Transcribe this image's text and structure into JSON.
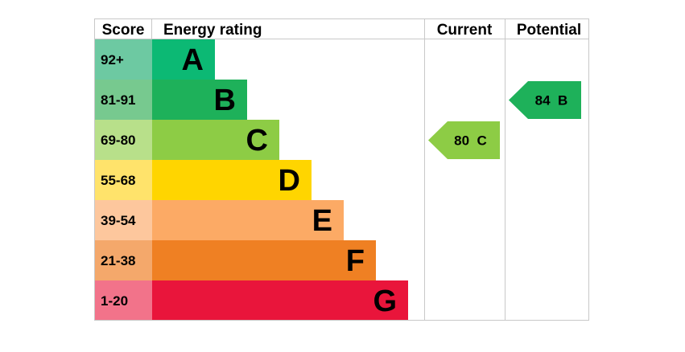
{
  "chart_data": {
    "type": "bar",
    "headers": {
      "score": "Score",
      "energy_rating": "Energy rating",
      "current": "Current",
      "potential": "Potential"
    },
    "bands": [
      {
        "range": "92+",
        "letter": "A",
        "bar_color": "#0cb974",
        "score_color": "#6dc9a2"
      },
      {
        "range": "81-91",
        "letter": "B",
        "bar_color": "#1eb15a",
        "score_color": "#77c98f"
      },
      {
        "range": "69-80",
        "letter": "C",
        "bar_color": "#8dcc45",
        "score_color": "#b8e08a"
      },
      {
        "range": "55-68",
        "letter": "D",
        "bar_color": "#ffd500",
        "score_color": "#ffe36b"
      },
      {
        "range": "39-54",
        "letter": "E",
        "bar_color": "#fcaa65",
        "score_color": "#fdc79d"
      },
      {
        "range": "21-38",
        "letter": "F",
        "bar_color": "#ef8023",
        "score_color": "#f4a86b"
      },
      {
        "range": "1-20",
        "letter": "G",
        "bar_color": "#e9153b",
        "score_color": "#f2738a"
      }
    ],
    "current": {
      "value": 80,
      "letter": "C",
      "label": "80  C",
      "color": "#8dcc45"
    },
    "potential": {
      "value": 84,
      "letter": "B",
      "label": "84  B",
      "color": "#1eb15a"
    }
  }
}
